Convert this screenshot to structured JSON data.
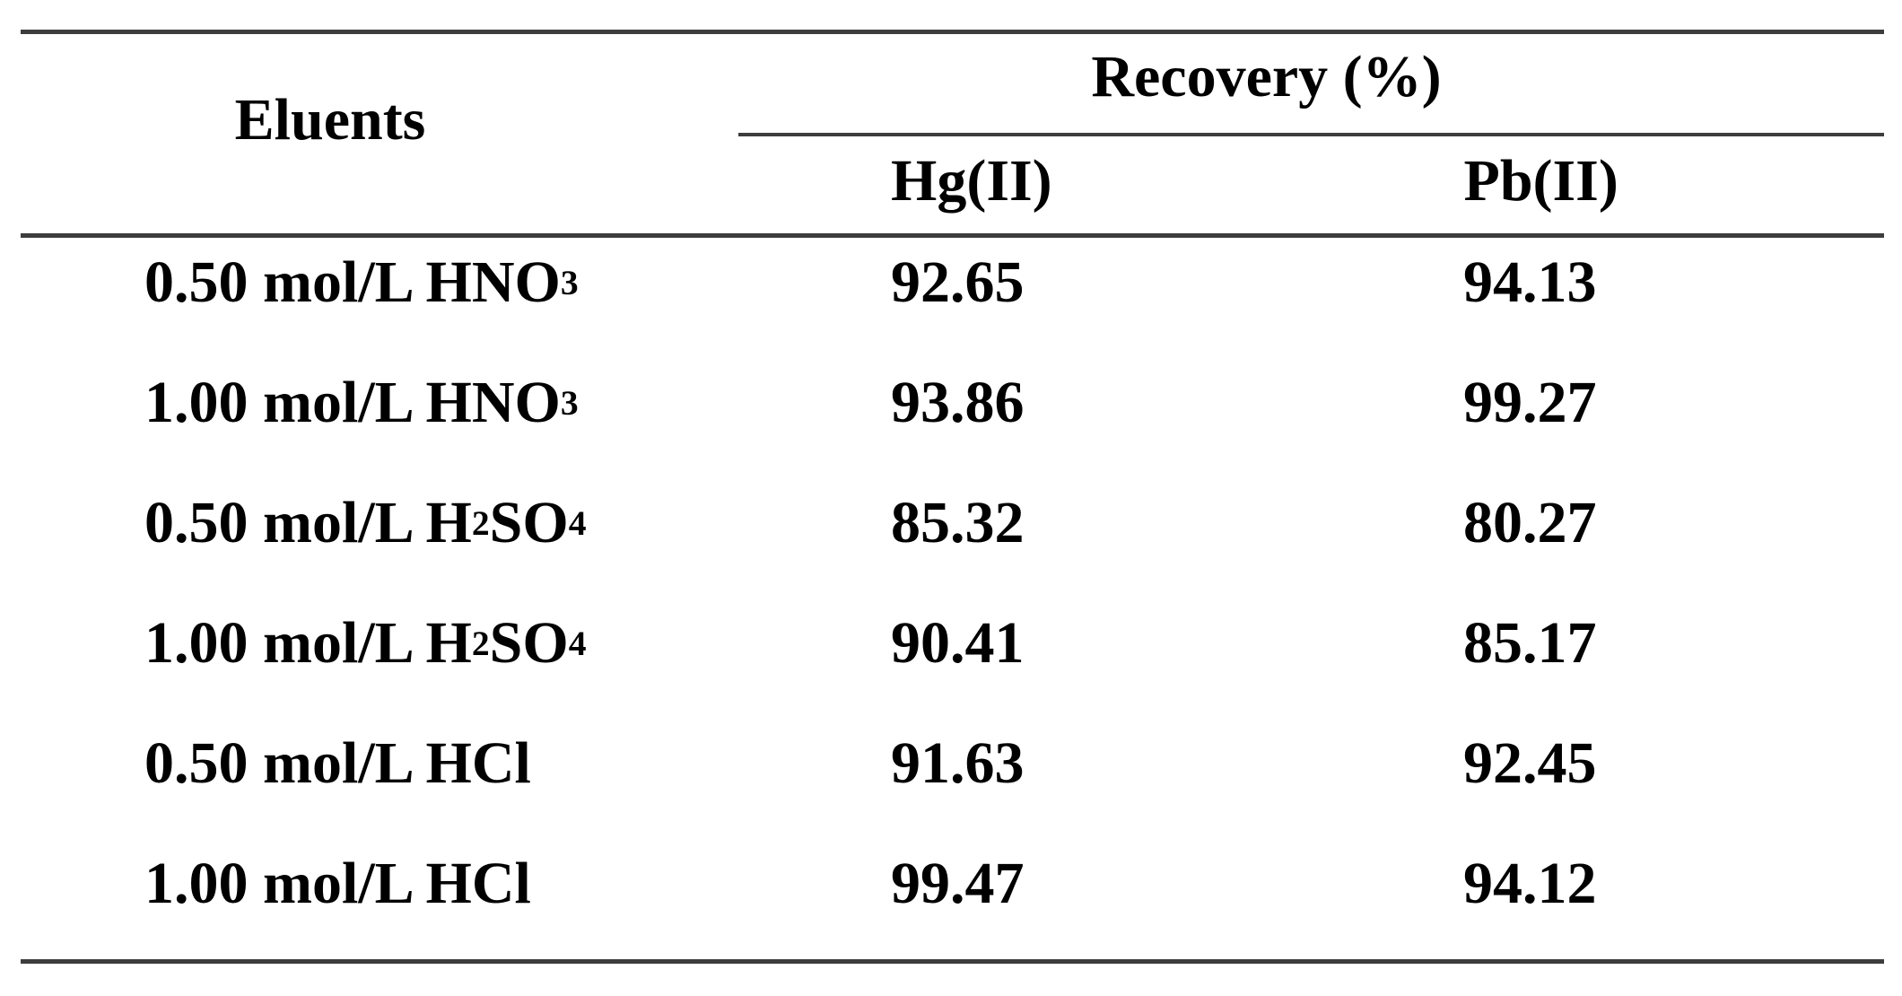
{
  "page": {
    "background": "#ffffff",
    "text_color": "#000000",
    "rule_color": "#3d3d3d"
  },
  "table": {
    "eluents_header": "Eluents",
    "recovery_header": "Recovery (%)",
    "columns": [
      "Hg(II)",
      "Pb(II)"
    ],
    "rows": [
      {
        "eluent": [
          {
            "t": "0.50 mol/L HNO"
          },
          {
            "t": "3",
            "sub": true
          }
        ],
        "hg": "92.65",
        "pb": "94.13"
      },
      {
        "eluent": [
          {
            "t": "1.00 mol/L HNO"
          },
          {
            "t": "3",
            "sub": true
          }
        ],
        "hg": "93.86",
        "pb": "99.27"
      },
      {
        "eluent": [
          {
            "t": "0.50 mol/L H"
          },
          {
            "t": "2",
            "sub": true
          },
          {
            "t": "SO"
          },
          {
            "t": "4",
            "sub": true
          }
        ],
        "hg": "85.32",
        "pb": "80.27"
      },
      {
        "eluent": [
          {
            "t": "1.00 mol/L H"
          },
          {
            "t": "2",
            "sub": true
          },
          {
            "t": "SO"
          },
          {
            "t": "4",
            "sub": true
          }
        ],
        "hg": "90.41",
        "pb": "85.17"
      },
      {
        "eluent": [
          {
            "t": "0.50 mol/L HCl"
          }
        ],
        "hg": "91.63",
        "pb": "92.45"
      },
      {
        "eluent": [
          {
            "t": "1.00 mol/L HCl"
          }
        ],
        "hg": "99.47",
        "pb": "94.12"
      }
    ]
  },
  "chart_data": {
    "type": "table",
    "title": "Recovery (%) by eluent",
    "columns": [
      "Eluents",
      "Hg(II) Recovery (%)",
      "Pb(II) Recovery (%)"
    ],
    "rows": [
      [
        "0.50 mol/L HNO3",
        92.65,
        94.13
      ],
      [
        "1.00 mol/L HNO3",
        93.86,
        99.27
      ],
      [
        "0.50 mol/L H2SO4",
        85.32,
        80.27
      ],
      [
        "1.00 mol/L H2SO4",
        90.41,
        85.17
      ],
      [
        "0.50 mol/L HCl",
        91.63,
        92.45
      ],
      [
        "1.00 mol/L HCl",
        99.47,
        94.12
      ]
    ]
  }
}
